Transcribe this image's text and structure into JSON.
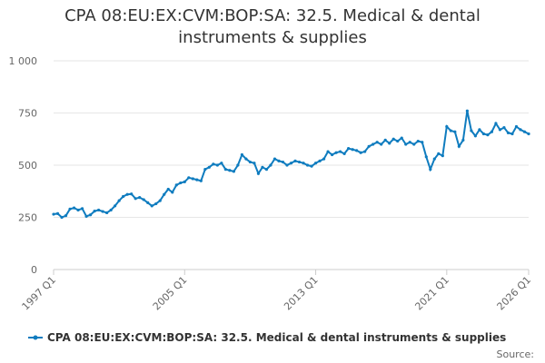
{
  "chart_data": {
    "type": "line",
    "title": "CPA 08:EU:EX:CVM:BOP:SA: 32.5. Medical & dental instruments & supplies",
    "categories": [
      "1997 Q1",
      null,
      null,
      null,
      null,
      null,
      null,
      null,
      null,
      null,
      null,
      null,
      null,
      null,
      null,
      null,
      null,
      null,
      null,
      null,
      null,
      null,
      null,
      null,
      null,
      null,
      null,
      null,
      null,
      null,
      null,
      null,
      "2005 Q1",
      null,
      null,
      null,
      null,
      null,
      null,
      null,
      null,
      null,
      null,
      null,
      null,
      null,
      null,
      null,
      null,
      null,
      null,
      null,
      null,
      null,
      null,
      null,
      null,
      null,
      null,
      null,
      null,
      null,
      null,
      null,
      "2013 Q1",
      null,
      null,
      null,
      null,
      null,
      null,
      null,
      null,
      null,
      null,
      null,
      null,
      null,
      null,
      null,
      null,
      null,
      null,
      null,
      null,
      null,
      null,
      null,
      null,
      null,
      null,
      null,
      null,
      null,
      null,
      null,
      "2021 Q1",
      null,
      null,
      null,
      null,
      null,
      null,
      null,
      null,
      null,
      null,
      null,
      null,
      null,
      null,
      null,
      null,
      null,
      null,
      null,
      "2026 Q1"
    ],
    "series": [
      {
        "name": "CPA 08:EU:EX:CVM:BOP:SA: 32.5. Medical & dental instruments & supplies",
        "color": "#0f7cbf",
        "values": [
          265,
          268,
          250,
          258,
          290,
          295,
          285,
          292,
          255,
          262,
          280,
          285,
          278,
          272,
          285,
          305,
          330,
          350,
          360,
          362,
          340,
          345,
          335,
          320,
          305,
          315,
          330,
          360,
          385,
          370,
          405,
          415,
          420,
          440,
          435,
          430,
          425,
          480,
          490,
          505,
          500,
          510,
          480,
          475,
          470,
          500,
          550,
          530,
          515,
          510,
          460,
          490,
          480,
          500,
          530,
          520,
          515,
          500,
          510,
          520,
          515,
          510,
          500,
          495,
          510,
          520,
          530,
          565,
          550,
          560,
          565,
          555,
          580,
          575,
          570,
          560,
          565,
          590,
          600,
          610,
          600,
          620,
          605,
          625,
          615,
          630,
          600,
          610,
          600,
          615,
          610,
          540,
          480,
          530,
          555,
          545,
          685,
          665,
          660,
          590,
          620,
          760,
          665,
          640,
          670,
          650,
          645,
          660,
          700,
          670,
          680,
          655,
          650,
          685,
          670,
          660,
          650
        ]
      }
    ],
    "ylim": [
      0,
      1000
    ],
    "yticks": [
      0,
      250,
      500,
      750,
      {
        "value": 1000,
        "label": "1 000"
      }
    ],
    "grid": true,
    "source": "Source:"
  }
}
